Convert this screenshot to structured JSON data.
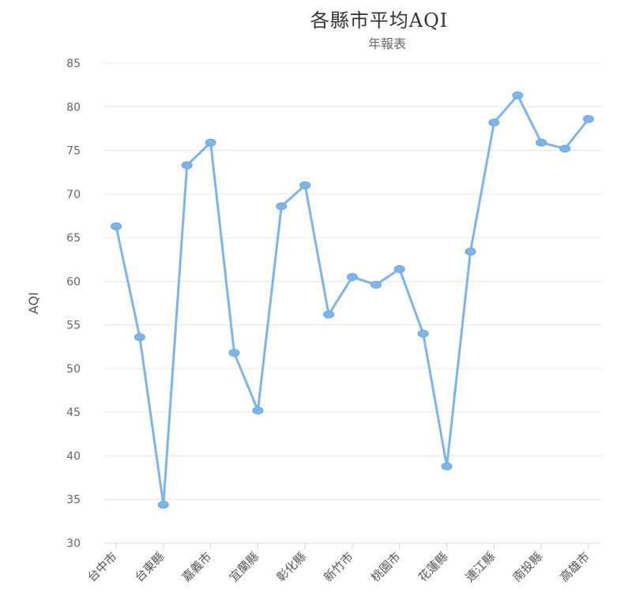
{
  "chart_data": {
    "type": "line",
    "title": "各縣市平均AQI",
    "subtitle": "年報表",
    "ylabel": "AQI",
    "xlabel": "",
    "ylim": [
      30,
      85
    ],
    "yticks": [
      30,
      35,
      40,
      45,
      50,
      55,
      60,
      65,
      70,
      75,
      80,
      85
    ],
    "grid": true,
    "legend": "none",
    "categories_labeled": [
      "台中市",
      "台東縣",
      "嘉義市",
      "宜蘭縣",
      "彰化縣",
      "新竹市",
      "桃園市",
      "花蓮縣",
      "連江縣",
      "南投縣",
      "高雄市"
    ],
    "series": [
      {
        "values": [
          66.3,
          53.6,
          34.4,
          73.3,
          75.9,
          51.8,
          45.2,
          68.6,
          71.0,
          56.2,
          60.5,
          59.6,
          61.4,
          54.0,
          38.8,
          63.4,
          78.2,
          81.3,
          75.9,
          75.2,
          78.6
        ],
        "color": "#7cb5ec"
      }
    ]
  }
}
